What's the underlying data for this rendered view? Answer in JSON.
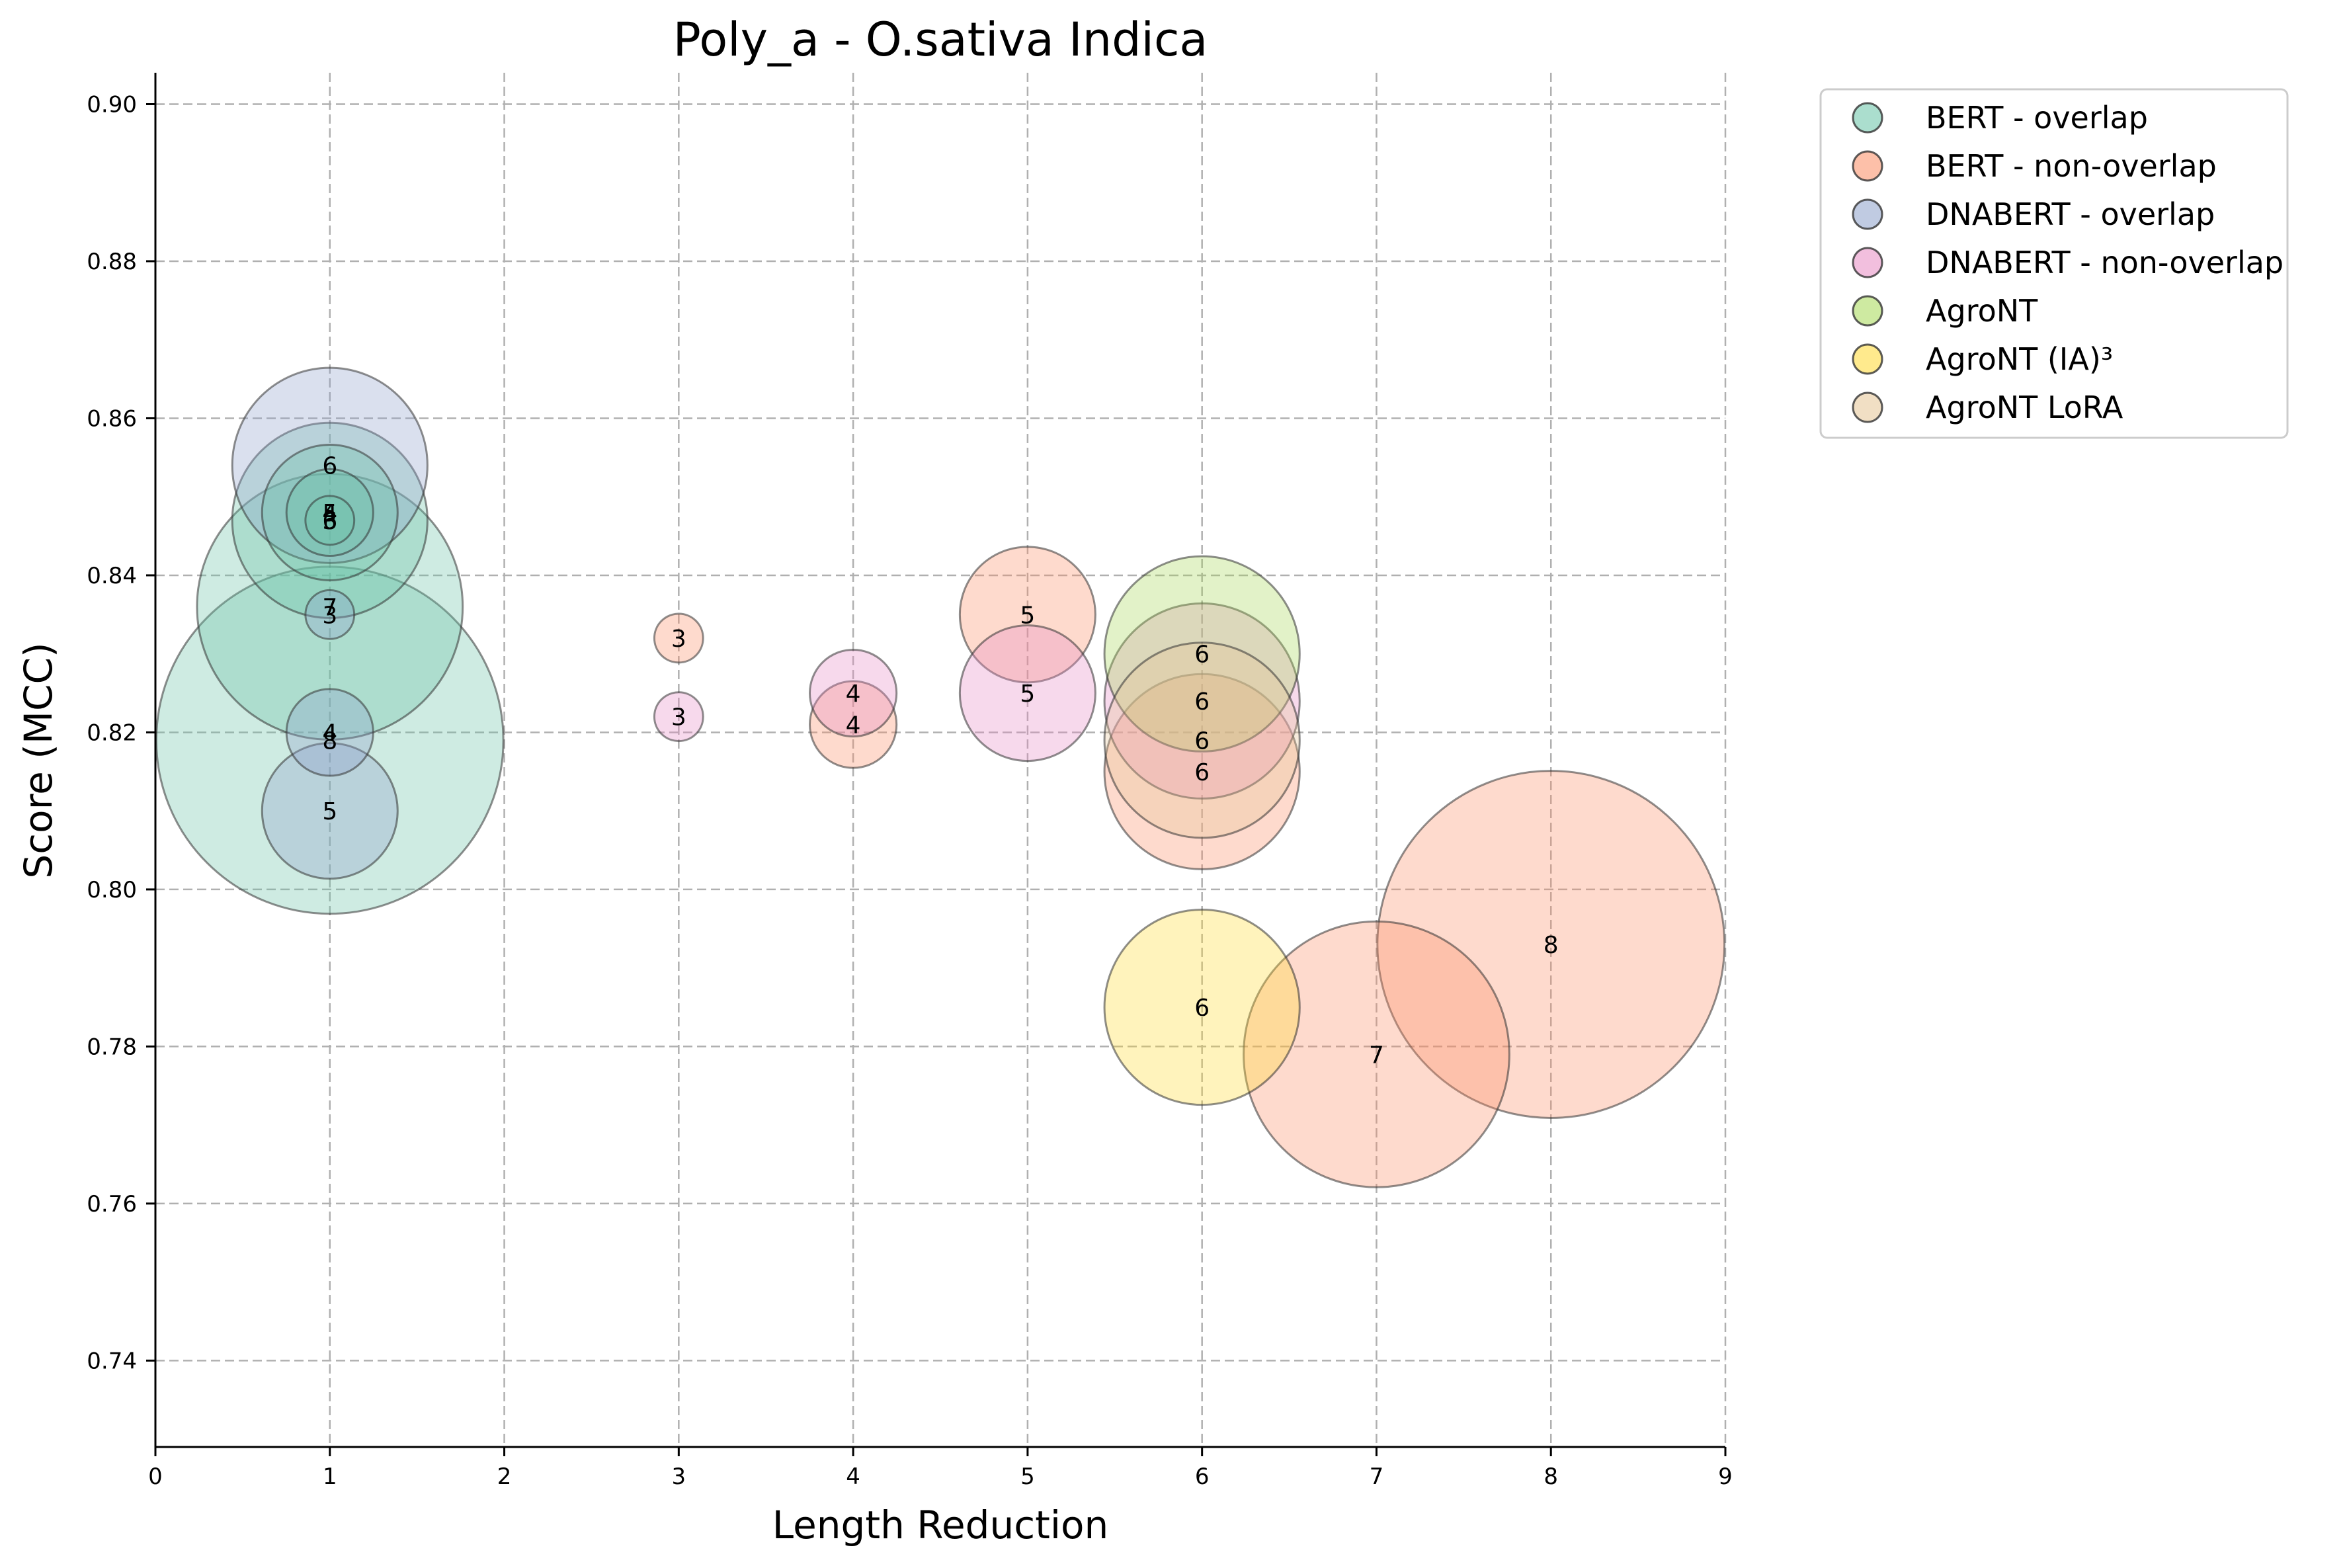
{
  "chart_data": {
    "type": "scatter",
    "title": "Poly_a - O.sativa Indica",
    "xlabel": "Length Reduction",
    "ylabel": "Score (MCC)",
    "xlim": [
      0,
      9
    ],
    "ylim": [
      0.729,
      0.904
    ],
    "xticks": [
      "0",
      "1",
      "2",
      "3",
      "4",
      "5",
      "6",
      "7",
      "8",
      "9"
    ],
    "yticks": [
      "0.74",
      "0.76",
      "0.78",
      "0.80",
      "0.82",
      "0.84",
      "0.86",
      "0.88",
      "0.90"
    ],
    "grid": true,
    "legend_position": "outside-top-right",
    "series": [
      {
        "name": "BERT - overlap",
        "color": "#66c2a5",
        "points": [
          {
            "x": 1,
            "y": 0.819,
            "label": "8",
            "size": 8
          },
          {
            "x": 1,
            "y": 0.836,
            "label": "7",
            "size": 7
          },
          {
            "x": 1,
            "y": 0.847,
            "label": "6",
            "size": 6
          },
          {
            "x": 1,
            "y": 0.848,
            "label": "5",
            "size": 5
          },
          {
            "x": 1,
            "y": 0.848,
            "label": "4",
            "size": 4
          },
          {
            "x": 1,
            "y": 0.847,
            "label": "3",
            "size": 3
          }
        ]
      },
      {
        "name": "BERT - non-overlap",
        "color": "#fc8d62",
        "points": [
          {
            "x": 3,
            "y": 0.832,
            "label": "3",
            "size": 3
          },
          {
            "x": 4,
            "y": 0.821,
            "label": "4",
            "size": 4
          },
          {
            "x": 5,
            "y": 0.835,
            "label": "5",
            "size": 5
          },
          {
            "x": 6,
            "y": 0.815,
            "label": "6",
            "size": 6
          },
          {
            "x": 7,
            "y": 0.779,
            "label": "7",
            "size": 7
          },
          {
            "x": 8,
            "y": 0.793,
            "label": "8",
            "size": 8
          }
        ]
      },
      {
        "name": "DNABERT - overlap",
        "color": "#8da0cb",
        "points": [
          {
            "x": 1,
            "y": 0.854,
            "label": "6",
            "size": 6
          },
          {
            "x": 1,
            "y": 0.81,
            "label": "5",
            "size": 5
          },
          {
            "x": 1,
            "y": 0.82,
            "label": "4",
            "size": 4
          },
          {
            "x": 1,
            "y": 0.835,
            "label": "3",
            "size": 3
          }
        ]
      },
      {
        "name": "DNABERT - non-overlap",
        "color": "#e78ac3",
        "points": [
          {
            "x": 3,
            "y": 0.822,
            "label": "3",
            "size": 3
          },
          {
            "x": 4,
            "y": 0.825,
            "label": "4",
            "size": 4
          },
          {
            "x": 5,
            "y": 0.825,
            "label": "5",
            "size": 5
          },
          {
            "x": 6,
            "y": 0.824,
            "label": "6",
            "size": 6
          }
        ]
      },
      {
        "name": "AgroNT",
        "color": "#a6d854",
        "points": [
          {
            "x": 6,
            "y": 0.83,
            "label": "6",
            "size": 6
          }
        ]
      },
      {
        "name": "AgroNT (IA)³",
        "color": "#ffd92f",
        "points": [
          {
            "x": 6,
            "y": 0.785,
            "label": "6",
            "size": 6
          }
        ]
      },
      {
        "name": "AgroNT LoRA",
        "color": "#e5c494",
        "points": [
          {
            "x": 6,
            "y": 0.819,
            "label": "6",
            "size": 6
          }
        ]
      }
    ]
  }
}
